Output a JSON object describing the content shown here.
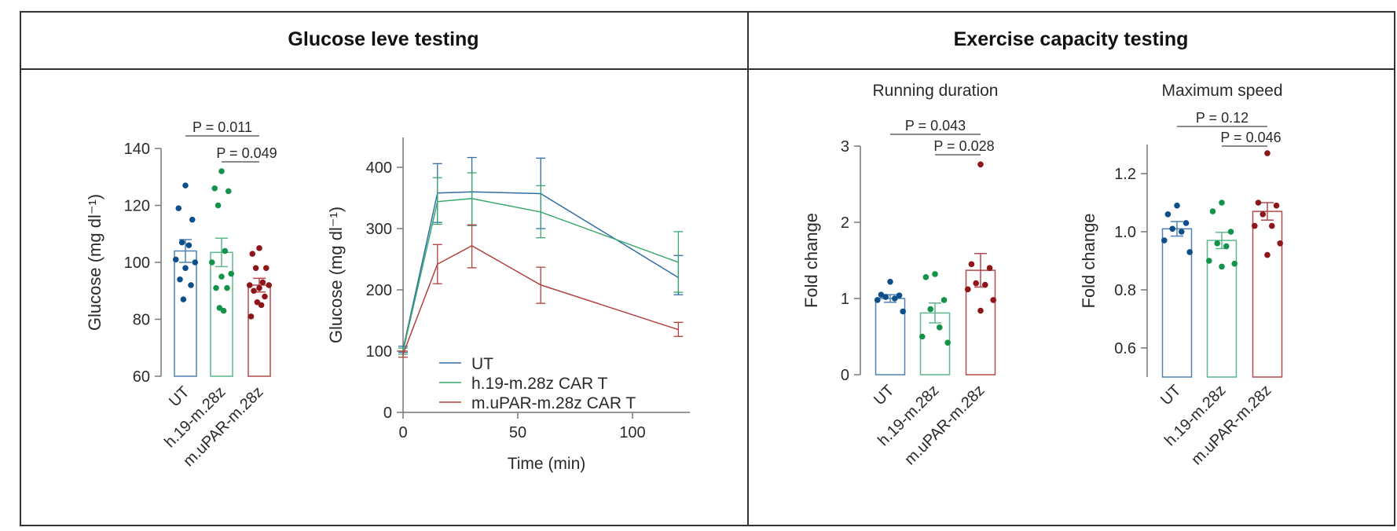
{
  "headers": {
    "left": "Glucose leve testing",
    "right": "Exercise capacity testing"
  },
  "colors": {
    "UT": {
      "line": "#2f6ea5",
      "dot": "#0d4f8b",
      "bar": "#4f82b3"
    },
    "h.19-m.28z": {
      "line": "#3aa76d",
      "dot": "#13934a",
      "bar": "#5db98b"
    },
    "m.uPAR-m.28z": {
      "line": "#b0403f",
      "dot": "#8e1519",
      "bar": "#b5484b"
    }
  },
  "chart_data": [
    {
      "type": "bar",
      "panel": "Glucose leve testing",
      "title": "",
      "ylabel": "Glucose (mg dl⁻¹)",
      "ylim": [
        60,
        140
      ],
      "yticks": [
        "60",
        "80",
        "100",
        "120",
        "140"
      ],
      "categories": [
        "UT",
        "h.19-m.28z",
        "m.uPAR-m.28z"
      ],
      "series": [
        {
          "mean": 104,
          "sem": 4,
          "points": [
            127,
            119,
            115,
            107,
            106,
            101,
            100,
            98,
            94,
            92,
            87
          ]
        },
        {
          "mean": 103.5,
          "sem": 5,
          "points": [
            132,
            126,
            125,
            120,
            104,
            100,
            96,
            95,
            91,
            91,
            84,
            83
          ]
        },
        {
          "mean": 92,
          "sem": 2.4,
          "points": [
            105,
            103,
            98,
            98,
            93,
            92,
            92,
            91,
            90,
            88,
            86,
            85,
            81
          ]
        }
      ],
      "p_values": [
        {
          "from": 0,
          "to": 2,
          "label": "P = 0.011"
        },
        {
          "from": 1,
          "to": 2,
          "label": "P = 0.049"
        }
      ]
    },
    {
      "type": "line",
      "panel": "Glucose leve testing",
      "title": "",
      "xlabel": "Time (min)",
      "ylabel": "Glucose (mg dl⁻¹)",
      "xlim": [
        0,
        125
      ],
      "ylim": [
        0,
        450
      ],
      "xticks": [
        "0",
        "50",
        "100"
      ],
      "yticks": [
        "0",
        "100",
        "200",
        "300",
        "400"
      ],
      "x": [
        0,
        15,
        30,
        60,
        120
      ],
      "legend": "bottom-center",
      "series": [
        {
          "name": "UT",
          "key": "UT",
          "values": [
            103,
            358,
            360,
            357,
            220
          ],
          "err_high": [
            108,
            406,
            416,
            415,
            256
          ],
          "err_low": [
            98,
            310,
            305,
            300,
            192
          ]
        },
        {
          "name": "h.19-m.28z CAR T",
          "key": "h.19-m.28z",
          "values": [
            100,
            344,
            349,
            327,
            245
          ],
          "err_high": [
            105,
            383,
            391,
            370,
            295
          ],
          "err_low": [
            95,
            307,
            305,
            285,
            196
          ]
        },
        {
          "name": "m.uPAR-m.28z CAR T",
          "key": "m.uPAR-m.28z",
          "values": [
            95,
            242,
            272,
            208,
            135
          ],
          "err_high": [
            100,
            274,
            306,
            237,
            147
          ],
          "err_low": [
            90,
            210,
            236,
            178,
            124
          ]
        }
      ]
    },
    {
      "type": "bar",
      "panel": "Exercise capacity testing",
      "title": "Running duration",
      "ylabel": "Fold change",
      "ylim": [
        0,
        3
      ],
      "yticks": [
        "0",
        "1",
        "2",
        "3"
      ],
      "categories": [
        "UT",
        "h.19-m.28z",
        "m.uPAR-m.28z"
      ],
      "series": [
        {
          "mean": 1.0,
          "sem": 0.05,
          "points": [
            1.22,
            1.05,
            1.04,
            1.02,
            1.0,
            0.98,
            0.83
          ]
        },
        {
          "mean": 0.81,
          "sem": 0.13,
          "points": [
            1.32,
            1.28,
            0.98,
            0.86,
            0.62,
            0.5,
            0.42
          ]
        },
        {
          "mean": 1.37,
          "sem": 0.22,
          "points": [
            2.76,
            1.45,
            1.4,
            1.2,
            1.18,
            1.12,
            0.98,
            0.84
          ]
        }
      ],
      "p_values": [
        {
          "from": 0,
          "to": 2,
          "label": "P = 0.043"
        },
        {
          "from": 1,
          "to": 2,
          "label": "P = 0.028"
        }
      ]
    },
    {
      "type": "bar",
      "panel": "Exercise capacity testing",
      "title": "Maximum speed",
      "ylabel": "Fold change",
      "ylim": [
        0.5,
        1.3
      ],
      "yticks": [
        "0.6",
        "0.8",
        "1.0",
        "1.2"
      ],
      "categories": [
        "UT",
        "h.19-m.28z",
        "m.uPAR-m.28z"
      ],
      "series": [
        {
          "mean": 1.01,
          "sem": 0.025,
          "points": [
            1.09,
            1.06,
            1.03,
            1.01,
            1.0,
            0.97,
            0.93
          ]
        },
        {
          "mean": 0.97,
          "sem": 0.028,
          "points": [
            1.1,
            1.07,
            1.0,
            0.96,
            0.95,
            0.9,
            0.89,
            0.88
          ]
        },
        {
          "mean": 1.07,
          "sem": 0.03,
          "points": [
            1.27,
            1.1,
            1.09,
            1.06,
            1.02,
            1.02,
            0.96,
            0.92
          ]
        }
      ],
      "p_values": [
        {
          "from": 0,
          "to": 2,
          "label": "P = 0.12"
        },
        {
          "from": 1,
          "to": 2,
          "label": "P = 0.046"
        }
      ]
    }
  ]
}
